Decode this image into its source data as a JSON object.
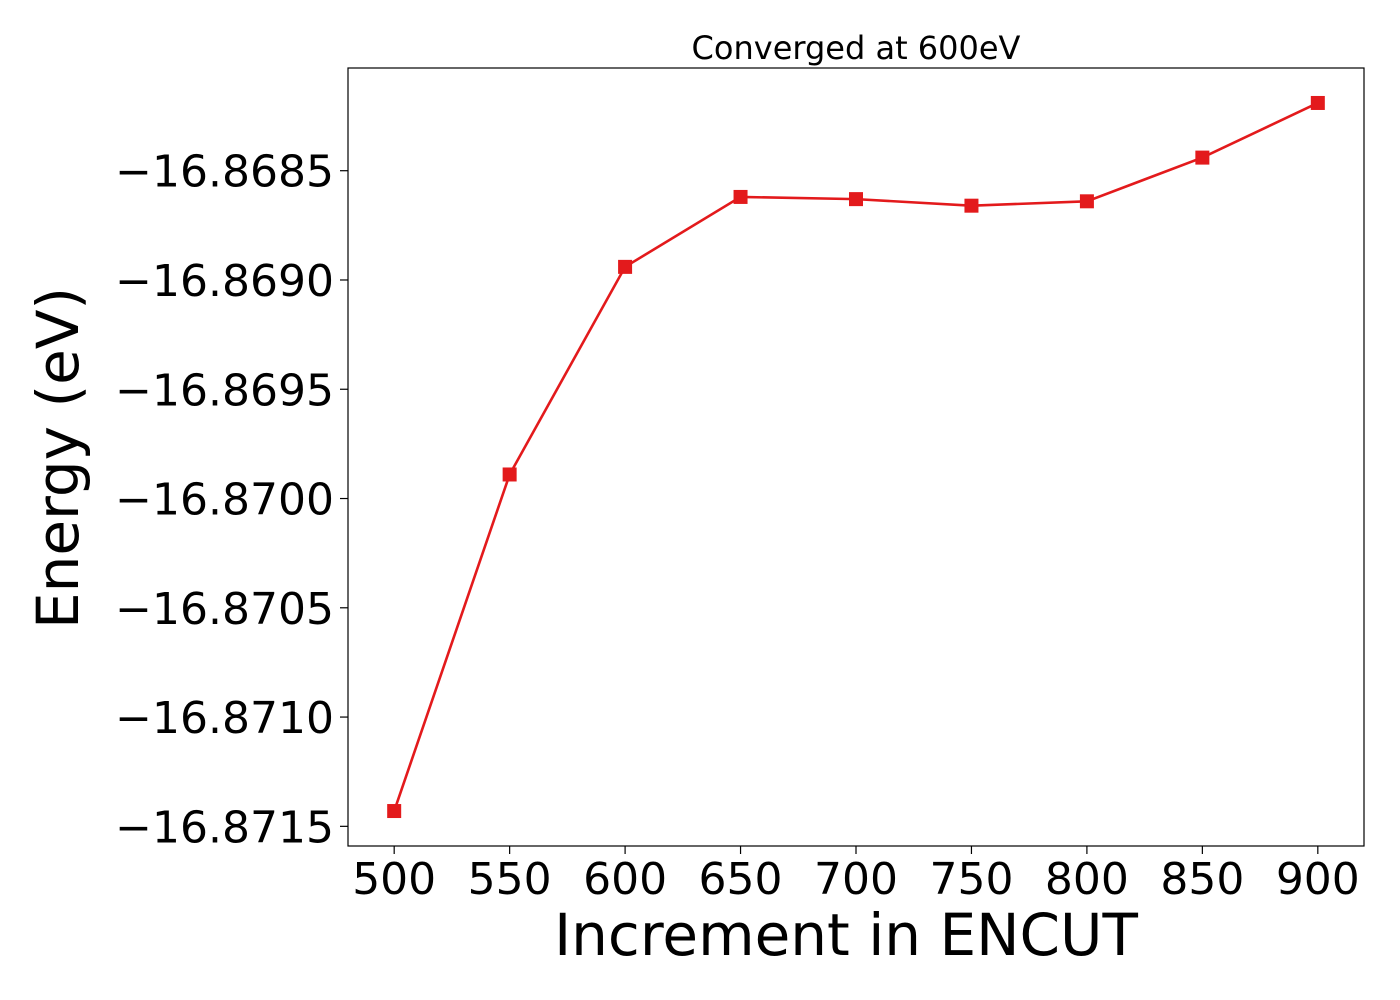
{
  "chart_data": {
    "type": "line",
    "title": "Converged at 600eV",
    "xlabel": "Increment in ENCUT",
    "ylabel": "Energy (eV)",
    "x": [
      500,
      550,
      600,
      650,
      700,
      750,
      800,
      850,
      900
    ],
    "series": [
      {
        "values": [
          -16.87143,
          -16.86989,
          -16.86894,
          -16.86862,
          -16.86863,
          -16.86866,
          -16.86864,
          -16.86844,
          -16.86819
        ],
        "color": "#e31a1c",
        "marker": "square"
      }
    ],
    "xticks": [
      500,
      550,
      600,
      650,
      700,
      750,
      800,
      850,
      900
    ],
    "xtick_labels": [
      "500",
      "550",
      "600",
      "650",
      "700",
      "750",
      "800",
      "850",
      "900"
    ],
    "yticks": [
      -16.8685,
      -16.869,
      -16.8695,
      -16.87,
      -16.8705,
      -16.871,
      -16.8715
    ],
    "ytick_labels": [
      "−16.8685",
      "−16.8690",
      "−16.8695",
      "−16.8700",
      "−16.8705",
      "−16.8710",
      "−16.8715"
    ],
    "xlim": [
      480,
      920
    ],
    "ylim": [
      -16.87159,
      -16.86803
    ],
    "grid": false,
    "legend": "none"
  }
}
